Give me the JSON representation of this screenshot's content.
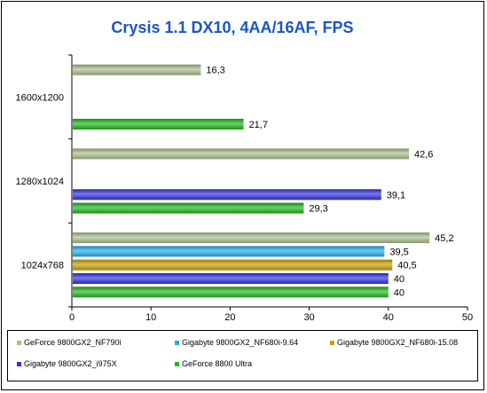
{
  "chart_data": {
    "type": "bar",
    "orientation": "horizontal",
    "title": "Crysis 1.1 DX10, 4AA/16AF, FPS",
    "categories": [
      "1600x1200",
      "1280x1024",
      "1024x768"
    ],
    "xlim": [
      0,
      50
    ],
    "xticks": [
      "0",
      "10",
      "20",
      "30",
      "40",
      "50"
    ],
    "grid": false,
    "legend_position": "bottom",
    "series": [
      {
        "name": "GeForce 9800GX2_NF790i",
        "color": "#a9c08a",
        "values": [
          16.3,
          42.6,
          45.2
        ],
        "labels": [
          "16,3",
          "42,6",
          "45,2"
        ]
      },
      {
        "name": "Gigabyte 9800GX2_NF680i-9.64",
        "color": "#1fb0ec",
        "values": [
          null,
          null,
          39.5
        ],
        "labels": [
          "",
          "",
          "39,5"
        ]
      },
      {
        "name": "Gigabyte 9800GX2_NF680i-15.08",
        "color": "#c8a000",
        "values": [
          null,
          null,
          40.5
        ],
        "labels": [
          "",
          "",
          "40,5"
        ]
      },
      {
        "name": "Gigabyte 9800GX2_i975X",
        "color": "#3030e0",
        "values": [
          null,
          39.1,
          40
        ],
        "labels": [
          "",
          "39,1",
          "40"
        ]
      },
      {
        "name": "GeForce 8800 Ultra",
        "color": "#1cb81c",
        "values": [
          21.7,
          29.3,
          40
        ],
        "labels": [
          "21,7",
          "29,3",
          "40"
        ]
      }
    ]
  }
}
